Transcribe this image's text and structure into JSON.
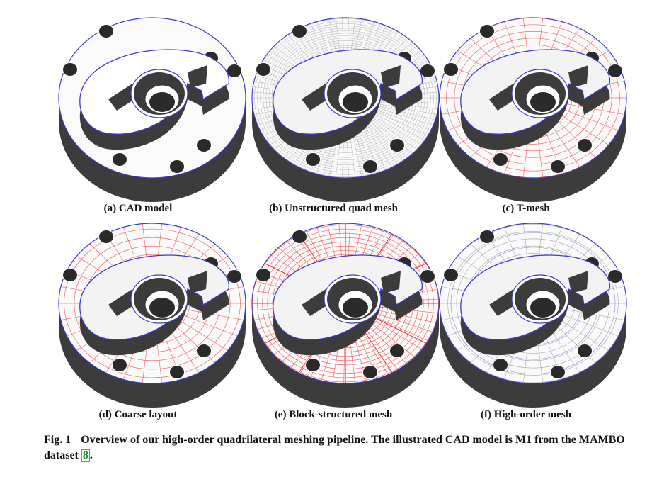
{
  "panels": [
    {
      "id": "a",
      "label": "(a) CAD model",
      "style": "cad"
    },
    {
      "id": "b",
      "label": "(b) Unstructured quad mesh",
      "style": "quad"
    },
    {
      "id": "c",
      "label": "(c) T-mesh",
      "style": "tmesh"
    },
    {
      "id": "d",
      "label": "(d) Coarse layout",
      "style": "coarse"
    },
    {
      "id": "e",
      "label": "(e) Block-structured mesh",
      "style": "block"
    },
    {
      "id": "f",
      "label": "(f) High-order mesh",
      "style": "highorder"
    }
  ],
  "caption": {
    "fig_label": "Fig. 1",
    "text": "Overview of our high-order quadrilateral meshing pipeline. The illustrated CAD model is M1 from the MAMBO dataset",
    "citation": "8",
    "end": "."
  },
  "colors": {
    "outline": "#3a3ad0",
    "red_lines": "#e83a3a",
    "gray_lines": "#9a9a9a",
    "body_dark": "#3c3c3c"
  }
}
